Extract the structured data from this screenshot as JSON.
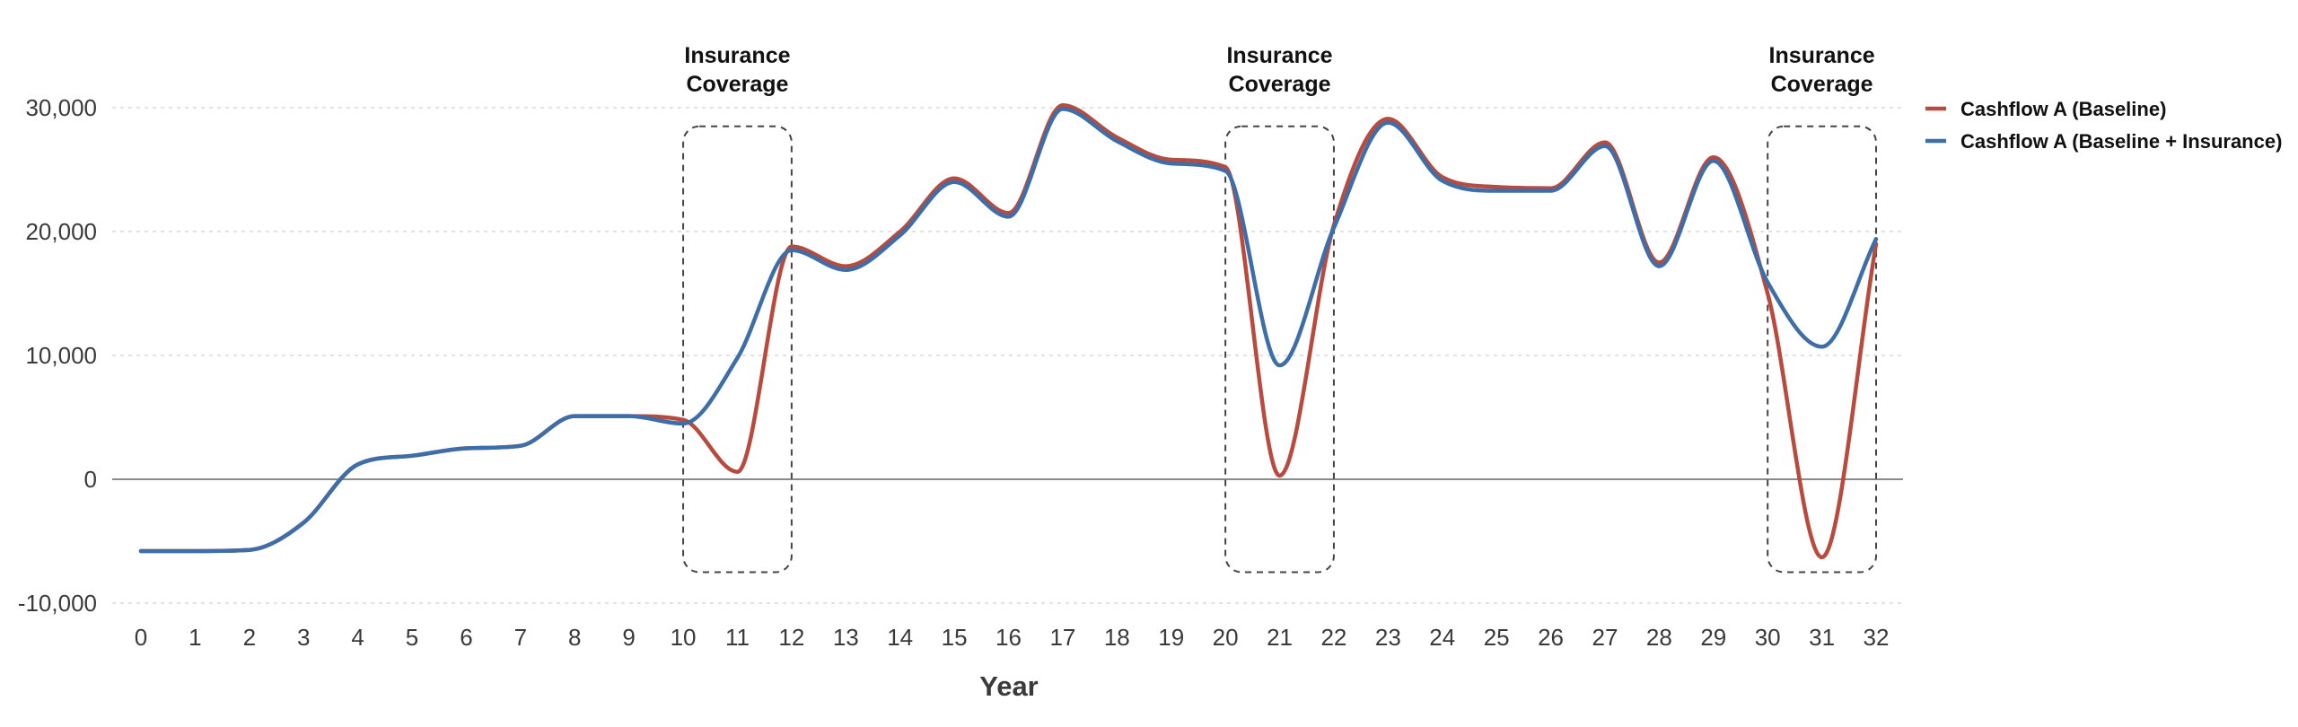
{
  "chart_data": {
    "type": "line",
    "xlabel": "Year",
    "ylabel": "",
    "xlim": [
      0,
      32
    ],
    "ylim": [
      -10000,
      30000
    ],
    "x_ticks": [
      0,
      1,
      2,
      3,
      4,
      5,
      6,
      7,
      8,
      9,
      10,
      11,
      12,
      13,
      14,
      15,
      16,
      17,
      18,
      19,
      20,
      21,
      22,
      23,
      24,
      25,
      26,
      27,
      28,
      29,
      30,
      31,
      32
    ],
    "y_ticks": [
      -10000,
      0,
      10000,
      20000,
      30000
    ],
    "y_tick_labels": [
      "-10,000",
      "0",
      "10,000",
      "20,000",
      "30,000"
    ],
    "grid": "horizontal dotted",
    "zero_line": true,
    "legend_position": "right",
    "x": [
      0,
      1,
      2,
      3,
      4,
      5,
      6,
      7,
      8,
      9,
      10,
      11,
      12,
      13,
      14,
      15,
      16,
      17,
      18,
      19,
      20,
      21,
      22,
      23,
      24,
      25,
      26,
      27,
      28,
      29,
      30,
      31,
      32
    ],
    "series": [
      {
        "name": "Cashflow A (Baseline)",
        "color": "#b94a3e",
        "values": [
          -5800,
          -5800,
          -5700,
          -3500,
          1200,
          1900,
          2500,
          2700,
          5100,
          5100,
          4800,
          600,
          18800,
          17200,
          20000,
          24300,
          21500,
          30200,
          27600,
          25800,
          25200,
          300,
          20500,
          29100,
          24400,
          23600,
          23500,
          27200,
          17500,
          26000,
          15000,
          -6300,
          19000
        ]
      },
      {
        "name": "Cashflow A (Baseline + Insurance)",
        "color": "#3d6ea8",
        "values": [
          -5800,
          -5800,
          -5700,
          -3500,
          1200,
          1900,
          2500,
          2700,
          5100,
          5100,
          4500,
          9800,
          18500,
          16900,
          19700,
          24000,
          21200,
          29900,
          27300,
          25500,
          24900,
          9200,
          20300,
          28800,
          24100,
          23300,
          23300,
          26900,
          17200,
          25700,
          15900,
          10700,
          19400
        ]
      }
    ],
    "annotations": [
      {
        "label_line1": "Insurance",
        "label_line2": "Coverage",
        "x_range": [
          10,
          12
        ],
        "y_range": [
          -7500,
          28500
        ]
      },
      {
        "label_line1": "Insurance",
        "label_line2": "Coverage",
        "x_range": [
          20,
          22
        ],
        "y_range": [
          -7500,
          28500
        ]
      },
      {
        "label_line1": "Insurance",
        "label_line2": "Coverage",
        "x_range": [
          30,
          32
        ],
        "y_range": [
          -7500,
          28500
        ]
      }
    ],
    "colors": {
      "grid": "#d9d9d9",
      "zero_line": "#8a8a8a",
      "box": "#444444"
    }
  }
}
